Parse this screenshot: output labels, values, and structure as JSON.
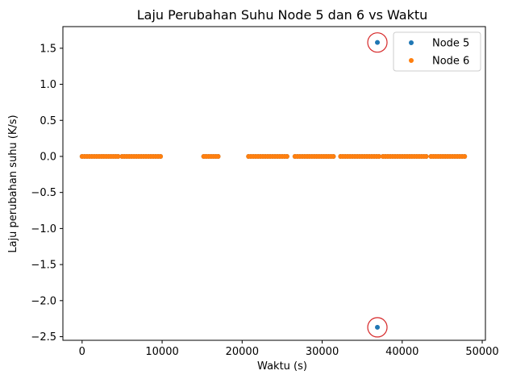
{
  "chart_data": {
    "type": "scatter",
    "title": "Laju Perubahan Suhu Node 5 dan 6 vs Waktu",
    "xlabel": "Waktu (s)",
    "ylabel": "Laju perubahan suhu (K/s)",
    "xlim": [
      -2400,
      50400
    ],
    "ylim": [
      -2.55,
      1.8
    ],
    "xticks": [
      0,
      10000,
      20000,
      30000,
      40000,
      50000
    ],
    "xtick_labels": [
      "0",
      "10000",
      "20000",
      "30000",
      "40000",
      "50000"
    ],
    "yticks": [
      -2.5,
      -2.0,
      -1.5,
      -1.0,
      -0.5,
      0.0,
      0.5,
      1.0,
      1.5
    ],
    "ytick_labels": [
      "−2.5",
      "−2.0",
      "−1.5",
      "−1.0",
      "−0.5",
      "0.0",
      "0.5",
      "1.0",
      "1.5"
    ],
    "grid": false,
    "legend_position": "top-right",
    "segments": [
      [
        0,
        4500
      ],
      [
        5000,
        10000
      ],
      [
        15200,
        17200
      ],
      [
        20800,
        25800
      ],
      [
        26600,
        31500
      ],
      [
        32300,
        37200
      ],
      [
        37600,
        43000
      ],
      [
        43600,
        48000
      ]
    ],
    "series": [
      {
        "name": "Node 5",
        "color": "#1f77b4",
        "baseline": 0.0,
        "outliers": [
          {
            "x": 36900,
            "y": 1.58
          },
          {
            "x": 36900,
            "y": -2.37
          }
        ]
      },
      {
        "name": "Node 6",
        "color": "#ff7f0e",
        "baseline": 0.0,
        "outliers": []
      }
    ],
    "annotations": [
      {
        "type": "circle",
        "color": "#d62728",
        "x": 36900,
        "y": 1.58
      },
      {
        "type": "circle",
        "color": "#d62728",
        "x": 36900,
        "y": -2.37
      }
    ]
  }
}
